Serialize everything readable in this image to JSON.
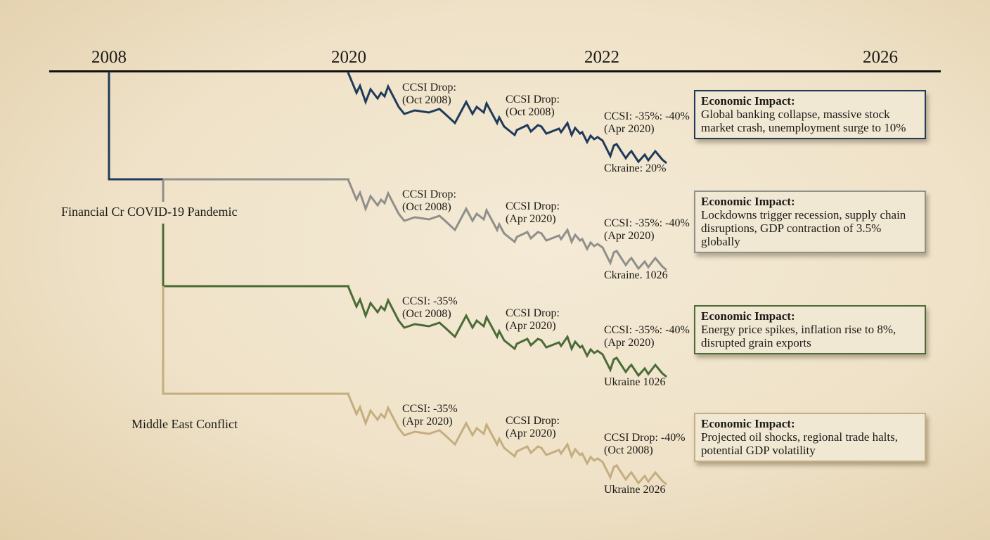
{
  "timeline": {
    "years": [
      "2008",
      "2020",
      "2022",
      "2026"
    ]
  },
  "categories": [
    {
      "label": "Financial Cr COVID-19 Pandemic",
      "color": "#1f3a5a"
    },
    {
      "label": "Middle East Conflict",
      "color": "#c4ae80"
    }
  ],
  "series": [
    {
      "color": "#1f3a5a",
      "annotations": [
        "CCSI Drop:\n(Oct 2008)",
        "CCSI Drop:\n(Oct 2008)",
        "CCSI: -35%: -40%\n(Apr 2020)"
      ],
      "end_label": "Ckraine: 20%",
      "impact": {
        "title": "Economic Impact:",
        "text": "Global banking collapse, massive stock market crash, unemployment surge to 10%"
      }
    },
    {
      "color": "#8f8f8b",
      "annotations": [
        "CCSI Drop:\n(Oct 2008)",
        "CCSI Drop:\n(Apr 2020)",
        "CCSI: -35%: -40%\n(Apr 2020)"
      ],
      "end_label": "Ckraine. 1026",
      "impact": {
        "title": "Economic Impact:",
        "text": "Lockdowns trigger recession, supply chain disruptions, GDP contraction of 3.5% globally"
      }
    },
    {
      "color": "#4b6b36",
      "annotations": [
        "CCSI: -35%\n(Oct 2008)",
        "CCSI Drop:\n(Apr 2020)",
        "CCSI: -35%: -40%\n(Apr 2020)"
      ],
      "end_label": "Ukraine 1026",
      "impact": {
        "title": "Economic Impact:",
        "text": "Energy price spikes, inflation rise to 8%, disrupted grain exports"
      }
    },
    {
      "color": "#c4ae80",
      "annotations": [
        "CCSI: -35%\n(Apr 2020)",
        "CCSI Drop:\n(Apr 2020)",
        "CCSI Drop: -40%\n(Oct 2008)"
      ],
      "end_label": "Ukraine 2026",
      "impact": {
        "title": "Economic Impact:",
        "text": "Projected oil shocks, regional trade halts, potential GDP volatility"
      }
    }
  ]
}
